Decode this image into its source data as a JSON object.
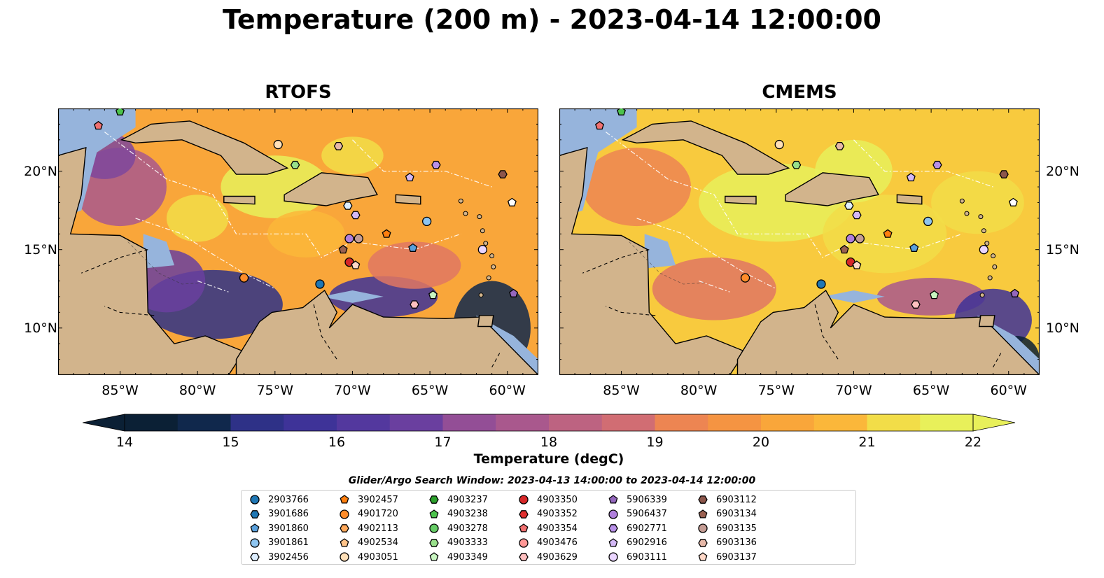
{
  "title": "Temperature (200 m) - 2023-04-14 12:00:00",
  "panels": [
    {
      "title": "RTOFS",
      "model": "rtofs"
    },
    {
      "title": "CMEMS",
      "model": "cmems"
    }
  ],
  "map": {
    "lon_range": [
      -89,
      -58
    ],
    "lat_range": [
      7,
      24
    ],
    "x_ticks": [
      {
        "lon": -85,
        "label": "85°W"
      },
      {
        "lon": -80,
        "label": "80°W"
      },
      {
        "lon": -75,
        "label": "75°W"
      },
      {
        "lon": -70,
        "label": "70°W"
      },
      {
        "lon": -65,
        "label": "65°W"
      },
      {
        "lon": -60,
        "label": "60°W"
      }
    ],
    "y_ticks": [
      {
        "lat": 20,
        "label": "20°N"
      },
      {
        "lat": 15,
        "label": "15°N"
      },
      {
        "lat": 10,
        "label": "10°N"
      }
    ],
    "land_color": "#d2b48c",
    "shelf_color": "#96b4dc",
    "deep_color": "#0f2a3a"
  },
  "colorbar": {
    "label": "Temperature (degC)",
    "min": 14,
    "max": 22,
    "step": 0.5,
    "ticks": [
      "14",
      "15",
      "16",
      "17",
      "18",
      "19",
      "20",
      "21",
      "22"
    ],
    "colors": [
      "#0b2035",
      "#10284c",
      "#1e2e6b",
      "#2e3187",
      "#3e3398",
      "#53389e",
      "#6a3f9f",
      "#7e479c",
      "#934e96",
      "#a9588d",
      "#bd6381",
      "#d16d73",
      "#e17763",
      "#ed8552",
      "#f59442",
      "#f9a63a",
      "#fbb73a",
      "#f8ca3e",
      "#f2dd48",
      "#e8f05a"
    ]
  },
  "search_window": "Glider/Argo Search Window: 2023-04-13 14:00:00 to 2023-04-14 12:00:00",
  "floats": [
    {
      "id": "2903766",
      "marker": "circle",
      "color": "#1f77b4",
      "lon": -72.1,
      "lat": 12.8
    },
    {
      "id": "3901686",
      "marker": "hexagon",
      "color": "#1f77b4"
    },
    {
      "id": "3901860",
      "marker": "pentagon",
      "color": "#5aa0dc",
      "lon": -66.1,
      "lat": 15.1
    },
    {
      "id": "3901861",
      "marker": "circle",
      "color": "#8ec5f0",
      "lon": -65.2,
      "lat": 16.8
    },
    {
      "id": "3902456",
      "marker": "hexagon",
      "color": "#ddeeff",
      "lon": -70.3,
      "lat": 17.8
    },
    {
      "id": "3902457",
      "marker": "pentagon",
      "color": "#ff7f0e",
      "lon": -67.8,
      "lat": 16.0
    },
    {
      "id": "4901720",
      "marker": "circle",
      "color": "#ff8c2a",
      "lon": -77.0,
      "lat": 13.2
    },
    {
      "id": "4902113",
      "marker": "hexagon",
      "color": "#ffa85a"
    },
    {
      "id": "4902534",
      "marker": "pentagon",
      "color": "#ffc48a"
    },
    {
      "id": "4903051",
      "marker": "circle",
      "color": "#ffe0b8",
      "lon": -74.8,
      "lat": 21.7
    },
    {
      "id": "4903237",
      "marker": "hexagon",
      "color": "#2ca02c"
    },
    {
      "id": "4903238",
      "marker": "pentagon",
      "color": "#4cc24c",
      "lon": -85.0,
      "lat": 23.8
    },
    {
      "id": "4903278",
      "marker": "circle",
      "color": "#66cc66"
    },
    {
      "id": "4903333",
      "marker": "hexagon",
      "color": "#98df8a",
      "lon": -73.7,
      "lat": 20.4
    },
    {
      "id": "4903349",
      "marker": "pentagon",
      "color": "#c8f5c0",
      "lon": -64.8,
      "lat": 12.1
    },
    {
      "id": "4903350",
      "marker": "circle",
      "color": "#d62728",
      "lon": -70.2,
      "lat": 14.2
    },
    {
      "id": "4903352",
      "marker": "hexagon",
      "color": "#e03030"
    },
    {
      "id": "4903354",
      "marker": "pentagon",
      "color": "#f07070",
      "lon": -86.4,
      "lat": 22.9
    },
    {
      "id": "4903476",
      "marker": "circle",
      "color": "#ff9896"
    },
    {
      "id": "4903629",
      "marker": "hexagon",
      "color": "#ffc0c0",
      "lon": -66.0,
      "lat": 11.5
    },
    {
      "id": "5906339",
      "marker": "pentagon",
      "color": "#9467bd",
      "lon": -59.6,
      "lat": 12.2
    },
    {
      "id": "5906437",
      "marker": "circle",
      "color": "#b07fdc",
      "lon": -70.2,
      "lat": 15.7
    },
    {
      "id": "6902771",
      "marker": "hexagon",
      "color": "#b890e8",
      "lon": -64.6,
      "lat": 20.4
    },
    {
      "id": "6902916",
      "marker": "pentagon",
      "color": "#d3b8f5",
      "lon": -66.3,
      "lat": 19.6
    },
    {
      "id": "6903111",
      "marker": "circle",
      "color": "#ead5ff",
      "lon": -61.6,
      "lat": 15.0
    },
    {
      "id": "6903112",
      "marker": "hexagon",
      "color": "#8c564b",
      "lon": -60.3,
      "lat": 19.8
    },
    {
      "id": "6903134",
      "marker": "pentagon",
      "color": "#9a6050",
      "lon": -70.6,
      "lat": 15.0
    },
    {
      "id": "6903135",
      "marker": "circle",
      "color": "#c49c94",
      "lon": -69.6,
      "lat": 15.7
    },
    {
      "id": "6903136",
      "marker": "hexagon",
      "color": "#e6b8a8",
      "lon": -70.9,
      "lat": 21.6
    },
    {
      "id": "6903137",
      "marker": "pentagon",
      "color": "#ffd8c8",
      "lon": -69.8,
      "lat": 14.0
    }
  ],
  "extra_markers": [
    {
      "marker": "pentagon",
      "color": "#ffffff",
      "lon": -59.7,
      "lat": 18.0
    },
    {
      "marker": "hexagon",
      "color": "#d3b8f5",
      "lon": -69.8,
      "lat": 17.2
    }
  ]
}
